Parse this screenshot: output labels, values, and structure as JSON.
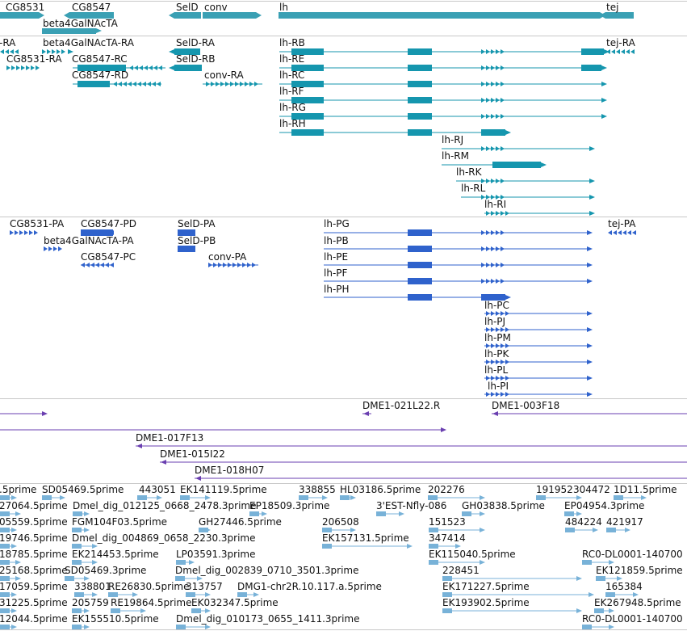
{
  "colors": {
    "gene": "#3aa0b4",
    "rna": "#1596ae",
    "protein": "#2f62cc",
    "clone": "#6a3fb0",
    "est": "#78b2d8",
    "divider": "#c8c8c8"
  },
  "tracks": [
    {
      "name": "gene-track",
      "color_key": "gene",
      "features": [
        {
          "label": "CG8531",
          "top": true
        },
        {
          "label": "CG8547",
          "top": true
        },
        {
          "label": "SelD",
          "top": true
        },
        {
          "label": "conv",
          "top": true
        },
        {
          "label": "lh",
          "top": true
        },
        {
          "label": "tej",
          "top": true
        },
        {
          "label": "beta4GalNAcTA",
          "top": true
        }
      ]
    },
    {
      "name": "transcript-track",
      "color_key": "rna",
      "features": [
        {
          "label": "-RA"
        },
        {
          "label": "beta4GalNAcTA-RA"
        },
        {
          "label": "SelD-RA"
        },
        {
          "label": "lh-RB"
        },
        {
          "label": "tej-RA"
        },
        {
          "label": "CG8531-RA"
        },
        {
          "label": "CG8547-RC"
        },
        {
          "label": "SelD-RB"
        },
        {
          "label": "lh-RE"
        },
        {
          "label": "CG8547-RD"
        },
        {
          "label": "conv-RA"
        },
        {
          "label": "lh-RC"
        },
        {
          "label": "lh-RF"
        },
        {
          "label": "lh-RG"
        },
        {
          "label": "lh-RH"
        },
        {
          "label": "lh-RJ"
        },
        {
          "label": "lh-RM"
        },
        {
          "label": "lh-RK"
        },
        {
          "label": "lh-RL"
        },
        {
          "label": "lh-RI"
        }
      ]
    },
    {
      "name": "protein-track",
      "color_key": "protein",
      "features": [
        {
          "label": "CG8531-PA"
        },
        {
          "label": "CG8547-PD"
        },
        {
          "label": "SelD-PA"
        },
        {
          "label": "lh-PG"
        },
        {
          "label": "tej-PA"
        },
        {
          "label": "beta4GalNAcTA-PA"
        },
        {
          "label": "SelD-PB"
        },
        {
          "label": "lh-PB"
        },
        {
          "label": "CG8547-PC"
        },
        {
          "label": "conv-PA"
        },
        {
          "label": "lh-PE"
        },
        {
          "label": "lh-PF"
        },
        {
          "label": "lh-PH"
        },
        {
          "label": "lh-PC"
        },
        {
          "label": "lh-PJ"
        },
        {
          "label": "lh-PM"
        },
        {
          "label": "lh-PK"
        },
        {
          "label": "lh-PL"
        },
        {
          "label": "lh-PI"
        }
      ]
    },
    {
      "name": "clone-track",
      "color_key": "clone",
      "features": [
        {
          "label": "DME1-021L22.R"
        },
        {
          "label": "DME1-003F18"
        },
        {
          "label": "DME1-017F13"
        },
        {
          "label": "DME1-015I22"
        },
        {
          "label": "DME1-018H07"
        }
      ]
    },
    {
      "name": "est-track",
      "color_key": "est",
      "features": [
        {
          "label": ".5prime"
        },
        {
          "label": "SD05469.5prime"
        },
        {
          "label": "443051"
        },
        {
          "label": "EK141119.5prime"
        },
        {
          "label": "338855"
        },
        {
          "label": "HL03186.5prime"
        },
        {
          "label": "202276"
        },
        {
          "label": "191952"
        },
        {
          "label": "304472"
        },
        {
          "label": "1D11.5prime"
        },
        {
          "label": "27064.5prime"
        },
        {
          "label": "Dmel_dig_012125_0668_2478.3prime"
        },
        {
          "label": "EP18509.3prime"
        },
        {
          "label": "3'EST-Nfly-086"
        },
        {
          "label": "GH03838.5prime"
        },
        {
          "label": "EP04954.3prime"
        },
        {
          "label": "05559.5prime"
        },
        {
          "label": "FGM104F03.5prime"
        },
        {
          "label": "GH27446.5prime"
        },
        {
          "label": "206508"
        },
        {
          "label": "151523"
        },
        {
          "label": "484224"
        },
        {
          "label": "421917"
        },
        {
          "label": "19746.5prime"
        },
        {
          "label": "Dmel_dig_004869_0658_2230.3prime"
        },
        {
          "label": "EK157131.5prime"
        },
        {
          "label": "347414"
        },
        {
          "label": "18785.5prime"
        },
        {
          "label": "EK214453.5prime"
        },
        {
          "label": "LP03591.3prime"
        },
        {
          "label": "EK115040.5prime"
        },
        {
          "label": "RC0-DL0001-140700"
        },
        {
          "label": "25168.5prime"
        },
        {
          "label": "SD05469.3prime"
        },
        {
          "label": "Dmel_dig_002839_0710_3501.3prime"
        },
        {
          "label": "228451"
        },
        {
          "label": "EK121859.5prime"
        },
        {
          "label": "17059.5prime"
        },
        {
          "label": "338801"
        },
        {
          "label": "RE26830.5prime"
        },
        {
          "label": "313757"
        },
        {
          "label": "DMG1-chr2R.10.117.a.5prime"
        },
        {
          "label": "EK171227.5prime"
        },
        {
          "label": "165384"
        },
        {
          "label": "31225.5prime"
        },
        {
          "label": "205759"
        },
        {
          "label": "RE19864.5prime"
        },
        {
          "label": "EK032347.5prime"
        },
        {
          "label": "EK193902.5prime"
        },
        {
          "label": "EK267948.5prime"
        },
        {
          "label": "12044.5prime"
        },
        {
          "label": "EK155510.5prime"
        },
        {
          "label": "Dmel_dig_010173_0655_1411.3prime"
        },
        {
          "label": "RC0-DL0001-140700"
        }
      ]
    }
  ]
}
